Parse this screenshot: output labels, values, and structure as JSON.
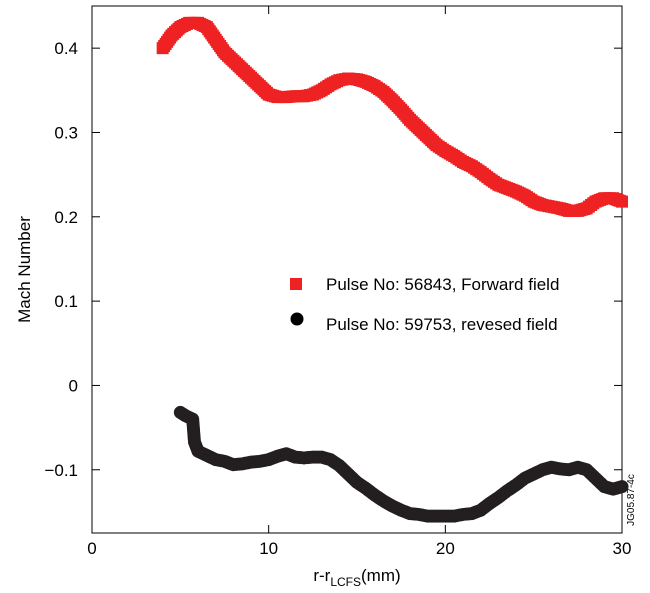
{
  "chart_data": {
    "type": "scatter",
    "xlabel_main": "r-r",
    "xlabel_sub": "LCFS",
    "xlabel_unit": "(mm)",
    "ylabel": "Mach Number",
    "xlim": [
      0,
      30
    ],
    "ylim": [
      -0.175,
      0.45
    ],
    "grid": false,
    "x_ticks": [
      0,
      10,
      20,
      30
    ],
    "y_ticks": [
      -0.1,
      0,
      0.1,
      0.2,
      0.3,
      0.4
    ],
    "x_tick_labels": [
      "0",
      "10",
      "20",
      "30"
    ],
    "y_tick_labels": [
      "−0.1",
      "0",
      "0.1",
      "0.2",
      "0.3",
      "0.4"
    ],
    "legend_placement": "right",
    "side_note": "JG05.87-4c",
    "series": [
      {
        "name": "Pulse No: 56843, Forward field",
        "marker": "square",
        "color": "#ee2222",
        "points": [
          [
            4.0,
            0.4
          ],
          [
            4.5,
            0.415
          ],
          [
            5.0,
            0.425
          ],
          [
            5.5,
            0.43
          ],
          [
            6.0,
            0.43
          ],
          [
            6.5,
            0.425
          ],
          [
            7.0,
            0.41
          ],
          [
            7.5,
            0.395
          ],
          [
            8.0,
            0.385
          ],
          [
            8.5,
            0.375
          ],
          [
            9.0,
            0.365
          ],
          [
            9.5,
            0.355
          ],
          [
            10.0,
            0.345
          ],
          [
            10.5,
            0.342
          ],
          [
            11.0,
            0.342
          ],
          [
            11.5,
            0.343
          ],
          [
            12.0,
            0.343
          ],
          [
            12.5,
            0.345
          ],
          [
            13.0,
            0.35
          ],
          [
            13.5,
            0.357
          ],
          [
            14.0,
            0.362
          ],
          [
            14.5,
            0.364
          ],
          [
            15.0,
            0.363
          ],
          [
            15.5,
            0.36
          ],
          [
            16.0,
            0.355
          ],
          [
            16.5,
            0.348
          ],
          [
            17.0,
            0.338
          ],
          [
            17.5,
            0.327
          ],
          [
            18.0,
            0.315
          ],
          [
            18.5,
            0.305
          ],
          [
            19.0,
            0.295
          ],
          [
            19.5,
            0.285
          ],
          [
            20.0,
            0.278
          ],
          [
            20.5,
            0.272
          ],
          [
            21.0,
            0.265
          ],
          [
            21.5,
            0.26
          ],
          [
            22.0,
            0.253
          ],
          [
            22.5,
            0.245
          ],
          [
            23.0,
            0.238
          ],
          [
            23.5,
            0.234
          ],
          [
            24.0,
            0.23
          ],
          [
            24.5,
            0.225
          ],
          [
            25.0,
            0.218
          ],
          [
            25.5,
            0.214
          ],
          [
            26.0,
            0.212
          ],
          [
            26.5,
            0.21
          ],
          [
            27.0,
            0.207
          ],
          [
            27.5,
            0.207
          ],
          [
            28.0,
            0.21
          ],
          [
            28.5,
            0.218
          ],
          [
            29.0,
            0.222
          ],
          [
            29.5,
            0.222
          ],
          [
            30.0,
            0.218
          ]
        ]
      },
      {
        "name": "Pulse No: 59753, revesed field",
        "marker": "circle",
        "color": "#231f20",
        "points": [
          [
            5.0,
            -0.032
          ],
          [
            5.3,
            -0.036
          ],
          [
            5.7,
            -0.04
          ],
          [
            5.8,
            -0.067
          ],
          [
            6.0,
            -0.078
          ],
          [
            6.5,
            -0.083
          ],
          [
            7.0,
            -0.088
          ],
          [
            7.5,
            -0.09
          ],
          [
            8.0,
            -0.094
          ],
          [
            8.5,
            -0.093
          ],
          [
            9.0,
            -0.091
          ],
          [
            9.5,
            -0.09
          ],
          [
            10.0,
            -0.088
          ],
          [
            10.5,
            -0.084
          ],
          [
            11.0,
            -0.081
          ],
          [
            11.5,
            -0.085
          ],
          [
            12.0,
            -0.086
          ],
          [
            12.5,
            -0.085
          ],
          [
            13.0,
            -0.085
          ],
          [
            13.5,
            -0.088
          ],
          [
            14.0,
            -0.095
          ],
          [
            14.5,
            -0.105
          ],
          [
            15.0,
            -0.115
          ],
          [
            15.5,
            -0.122
          ],
          [
            16.0,
            -0.13
          ],
          [
            16.5,
            -0.137
          ],
          [
            17.0,
            -0.143
          ],
          [
            17.5,
            -0.148
          ],
          [
            18.0,
            -0.152
          ],
          [
            18.5,
            -0.153
          ],
          [
            19.0,
            -0.155
          ],
          [
            19.5,
            -0.155
          ],
          [
            20.0,
            -0.155
          ],
          [
            20.5,
            -0.155
          ],
          [
            21.0,
            -0.153
          ],
          [
            21.5,
            -0.152
          ],
          [
            22.0,
            -0.148
          ],
          [
            22.5,
            -0.14
          ],
          [
            23.0,
            -0.133
          ],
          [
            23.5,
            -0.125
          ],
          [
            24.0,
            -0.118
          ],
          [
            24.5,
            -0.11
          ],
          [
            25.0,
            -0.105
          ],
          [
            25.5,
            -0.1
          ],
          [
            26.0,
            -0.097
          ],
          [
            26.5,
            -0.099
          ],
          [
            27.0,
            -0.1
          ],
          [
            27.5,
            -0.097
          ],
          [
            28.0,
            -0.1
          ],
          [
            28.5,
            -0.11
          ],
          [
            29.0,
            -0.12
          ],
          [
            29.5,
            -0.123
          ],
          [
            30.0,
            -0.12
          ]
        ]
      }
    ]
  }
}
